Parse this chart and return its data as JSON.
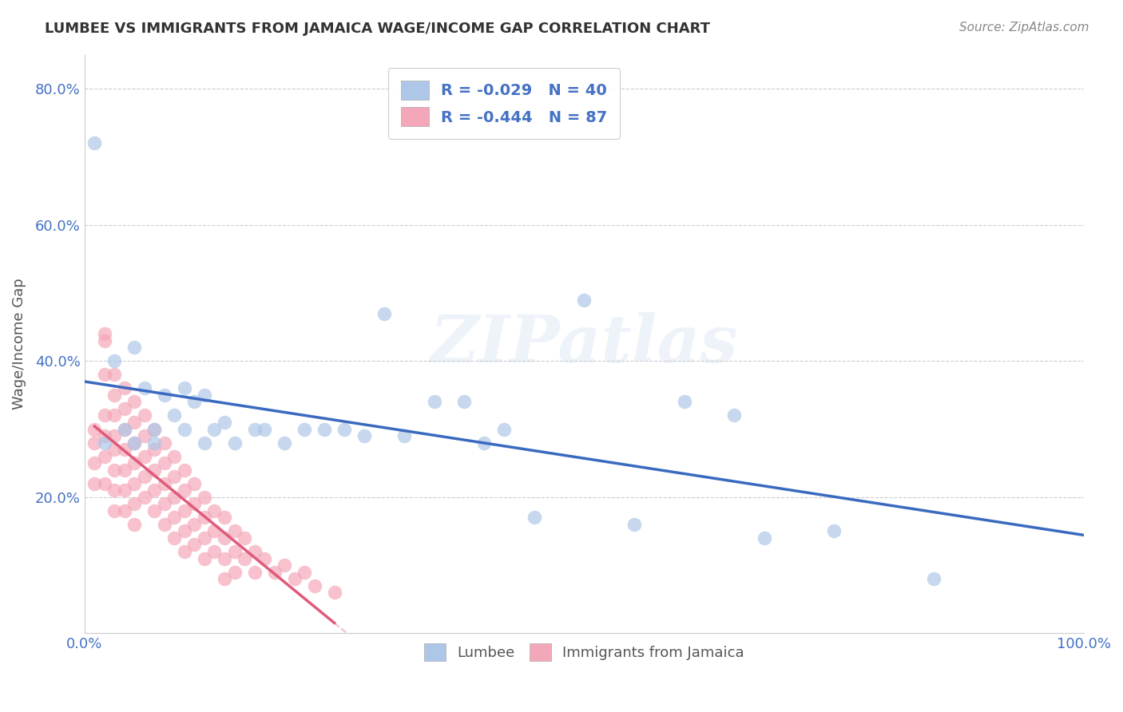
{
  "title": "LUMBEE VS IMMIGRANTS FROM JAMAICA WAGE/INCOME GAP CORRELATION CHART",
  "source": "Source: ZipAtlas.com",
  "ylabel": "Wage/Income Gap",
  "xlabel": "",
  "xlim": [
    0.0,
    1.0
  ],
  "ylim": [
    0.0,
    0.85
  ],
  "yticks": [
    0.2,
    0.4,
    0.6,
    0.8
  ],
  "ytick_labels": [
    "20.0%",
    "40.0%",
    "60.0%",
    "80.0%"
  ],
  "xticks": [
    0.0,
    1.0
  ],
  "xtick_labels": [
    "0.0%",
    "100.0%"
  ],
  "lumbee_color": "#aec6e8",
  "jamaica_color": "#f4a7b9",
  "line_lumbee_color": "#3a6abf",
  "line_jamaica_color": "#e05a7a",
  "r_lumbee": -0.029,
  "n_lumbee": 40,
  "r_jamaica": -0.444,
  "n_jamaica": 87,
  "watermark": "ZIPatlas",
  "background_color": "#ffffff",
  "lumbee_x": [
    0.01,
    0.02,
    0.03,
    0.04,
    0.05,
    0.05,
    0.06,
    0.07,
    0.07,
    0.08,
    0.09,
    0.1,
    0.1,
    0.11,
    0.12,
    0.12,
    0.13,
    0.14,
    0.15,
    0.17,
    0.18,
    0.2,
    0.22,
    0.24,
    0.26,
    0.28,
    0.3,
    0.32,
    0.35,
    0.38,
    0.4,
    0.42,
    0.45,
    0.5,
    0.55,
    0.6,
    0.65,
    0.68,
    0.75,
    0.85
  ],
  "lumbee_y": [
    0.72,
    0.28,
    0.4,
    0.3,
    0.42,
    0.28,
    0.36,
    0.3,
    0.28,
    0.35,
    0.32,
    0.36,
    0.3,
    0.34,
    0.35,
    0.28,
    0.3,
    0.31,
    0.28,
    0.3,
    0.3,
    0.28,
    0.3,
    0.3,
    0.3,
    0.29,
    0.47,
    0.29,
    0.34,
    0.34,
    0.28,
    0.3,
    0.17,
    0.49,
    0.16,
    0.34,
    0.32,
    0.14,
    0.15,
    0.08
  ],
  "jamaica_x": [
    0.01,
    0.01,
    0.01,
    0.01,
    0.02,
    0.02,
    0.02,
    0.02,
    0.02,
    0.02,
    0.02,
    0.03,
    0.03,
    0.03,
    0.03,
    0.03,
    0.03,
    0.03,
    0.03,
    0.04,
    0.04,
    0.04,
    0.04,
    0.04,
    0.04,
    0.04,
    0.05,
    0.05,
    0.05,
    0.05,
    0.05,
    0.05,
    0.05,
    0.06,
    0.06,
    0.06,
    0.06,
    0.06,
    0.07,
    0.07,
    0.07,
    0.07,
    0.07,
    0.08,
    0.08,
    0.08,
    0.08,
    0.08,
    0.09,
    0.09,
    0.09,
    0.09,
    0.09,
    0.1,
    0.1,
    0.1,
    0.1,
    0.1,
    0.11,
    0.11,
    0.11,
    0.11,
    0.12,
    0.12,
    0.12,
    0.12,
    0.13,
    0.13,
    0.13,
    0.14,
    0.14,
    0.14,
    0.14,
    0.15,
    0.15,
    0.15,
    0.16,
    0.16,
    0.17,
    0.17,
    0.18,
    0.19,
    0.2,
    0.21,
    0.22,
    0.23,
    0.25
  ],
  "jamaica_y": [
    0.3,
    0.28,
    0.25,
    0.22,
    0.44,
    0.43,
    0.38,
    0.32,
    0.29,
    0.26,
    0.22,
    0.38,
    0.35,
    0.32,
    0.29,
    0.27,
    0.24,
    0.21,
    0.18,
    0.36,
    0.33,
    0.3,
    0.27,
    0.24,
    0.21,
    0.18,
    0.34,
    0.31,
    0.28,
    0.25,
    0.22,
    0.19,
    0.16,
    0.32,
    0.29,
    0.26,
    0.23,
    0.2,
    0.3,
    0.27,
    0.24,
    0.21,
    0.18,
    0.28,
    0.25,
    0.22,
    0.19,
    0.16,
    0.26,
    0.23,
    0.2,
    0.17,
    0.14,
    0.24,
    0.21,
    0.18,
    0.15,
    0.12,
    0.22,
    0.19,
    0.16,
    0.13,
    0.2,
    0.17,
    0.14,
    0.11,
    0.18,
    0.15,
    0.12,
    0.17,
    0.14,
    0.11,
    0.08,
    0.15,
    0.12,
    0.09,
    0.14,
    0.11,
    0.12,
    0.09,
    0.11,
    0.09,
    0.1,
    0.08,
    0.09,
    0.07,
    0.06
  ]
}
